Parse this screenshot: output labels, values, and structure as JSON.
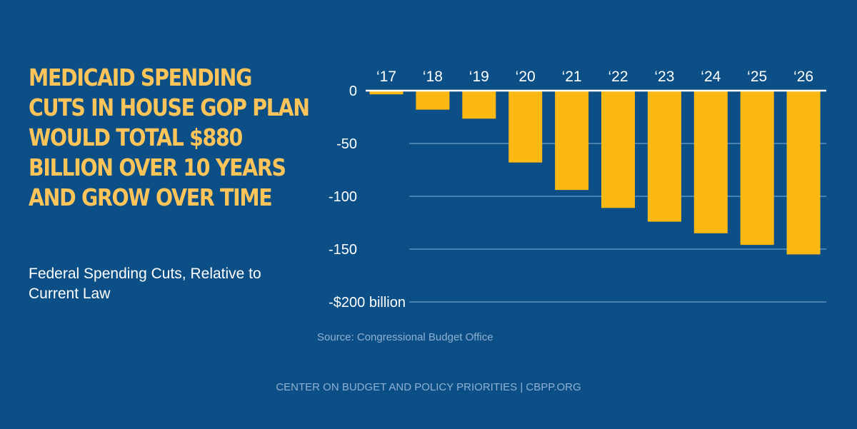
{
  "title_lines": [
    "Medicaid Spending",
    "Cuts in House GOP Plan",
    "Would Total $880",
    "Billion Over 10 Years",
    "and Grow Over Time"
  ],
  "subtitle": "Federal Spending Cuts, Relative to Current Law",
  "source": "Source: Congressional Budget Office",
  "footer": "CENTER ON BUDGET AND POLICY PRIORITIES | CBPP.ORG",
  "colors": {
    "background": "#0c4f86",
    "bar": "#fdb913",
    "title": "#fdc45a",
    "gridline": "#5f8fbf",
    "zero_line": "#ffffff"
  },
  "chart_data": {
    "type": "bar",
    "categories": [
      "‘17",
      "‘18",
      "‘19",
      "‘20",
      "‘21",
      "‘22",
      "‘23",
      "‘24",
      "‘25",
      "‘26"
    ],
    "values": [
      -3.5,
      -18,
      -26.5,
      -68,
      -94,
      -111,
      -124,
      -135,
      -146,
      -155
    ],
    "ylim": [
      -200,
      0
    ],
    "yticks": [
      0,
      -50,
      -100,
      -150,
      -200
    ],
    "ytick_labels": [
      "0",
      "-50",
      "-100",
      "-150",
      "-$200 billion"
    ],
    "category_axis_position": "top",
    "grid": true
  }
}
